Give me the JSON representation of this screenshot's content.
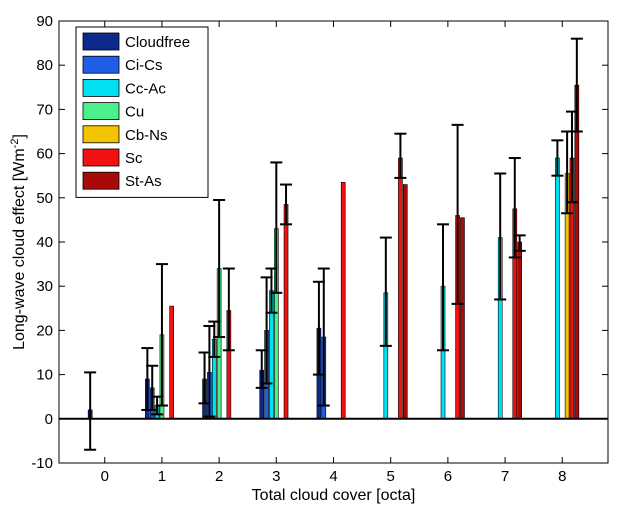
{
  "chart_data": {
    "type": "bar",
    "xlabel": "Total cloud cover [octa]",
    "ylabel_main": "Long-wave cloud effect [Wm",
    "ylabel_sup": "-2",
    "ylabel_end": "]",
    "xlim": [
      -0.8,
      8.8
    ],
    "ylim": [
      -10,
      90
    ],
    "x_ticks": [
      "0",
      "1",
      "2",
      "3",
      "4",
      "5",
      "6",
      "7",
      "8"
    ],
    "y_ticks": [
      "-10",
      "0",
      "10",
      "20",
      "30",
      "40",
      "50",
      "60",
      "70",
      "80",
      "90"
    ],
    "grid": false,
    "legend_position": "top-left",
    "series": [
      {
        "name": "Cloudfree",
        "color": "#0b2a8c",
        "values": [
          2,
          9,
          9,
          11,
          20.5,
          null,
          null,
          null,
          null
        ],
        "err_low": [
          -7,
          2,
          3.5,
          7,
          10,
          null,
          null,
          null,
          null
        ],
        "err_high": [
          10.5,
          16,
          15,
          15.5,
          31,
          null,
          null,
          null,
          null
        ]
      },
      {
        "name": "Ci-Cs",
        "color": "#1f5fe8",
        "values": [
          null,
          7,
          10.5,
          20,
          18.5,
          null,
          null,
          null,
          null
        ],
        "err_low": [
          null,
          2,
          0.5,
          8,
          3,
          null,
          null,
          null,
          null
        ],
        "err_high": [
          null,
          12,
          21,
          32,
          34,
          null,
          null,
          null,
          null
        ]
      },
      {
        "name": "Cc-Ac",
        "color": "#00e0f0",
        "values": [
          null,
          3,
          18,
          29,
          null,
          28.5,
          30,
          41,
          59
        ],
        "err_low": [
          null,
          1,
          14,
          24,
          null,
          16.5,
          15.5,
          27,
          55
        ],
        "err_high": [
          null,
          5,
          22,
          34,
          null,
          41,
          44,
          55.5,
          63
        ]
      },
      {
        "name": "Cu",
        "color": "#4cf08a",
        "values": [
          null,
          19,
          34,
          43,
          null,
          null,
          null,
          null,
          null
        ],
        "err_low": [
          null,
          3,
          18.5,
          28.5,
          null,
          null,
          null,
          null,
          null
        ],
        "err_high": [
          null,
          35,
          49.5,
          58,
          null,
          null,
          null,
          null,
          null
        ]
      },
      {
        "name": "Cb-Ns",
        "color": "#f2c400",
        "values": [
          null,
          null,
          null,
          null,
          null,
          null,
          null,
          null,
          55.5
        ],
        "err_low": [
          null,
          null,
          null,
          null,
          null,
          null,
          null,
          null,
          46.5
        ],
        "err_high": [
          null,
          null,
          null,
          null,
          null,
          null,
          null,
          null,
          65
        ]
      },
      {
        "name": "Sc",
        "color": "#f21010",
        "values": [
          null,
          25.5,
          24.5,
          48.5,
          53.5,
          59,
          46,
          47.5,
          59
        ],
        "err_low": [
          null,
          null,
          15.5,
          44,
          null,
          54.5,
          26,
          36.5,
          49
        ],
        "err_high": [
          null,
          null,
          34,
          53,
          null,
          64.5,
          66.5,
          59,
          69.5
        ]
      },
      {
        "name": "St-As",
        "color": "#a80a0a",
        "values": [
          null,
          null,
          null,
          null,
          null,
          53,
          45.5,
          40,
          75.5
        ],
        "err_low": [
          null,
          null,
          null,
          null,
          null,
          null,
          null,
          38,
          65
        ],
        "err_high": [
          null,
          null,
          null,
          null,
          null,
          null,
          null,
          41.5,
          86
        ]
      }
    ]
  }
}
